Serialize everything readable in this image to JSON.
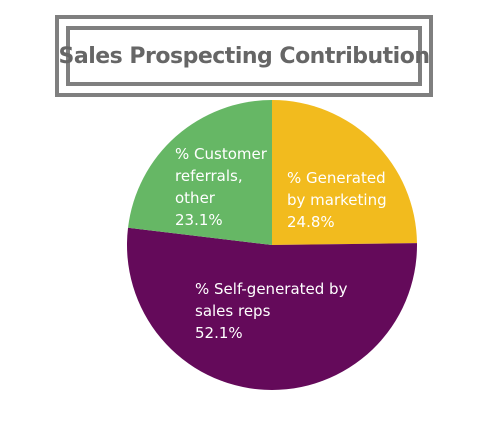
{
  "chart_data": {
    "type": "pie",
    "title": "Sales Prospecting Contribution",
    "slices": [
      {
        "label_lines": [
          "% Generated",
          "by marketing",
          "24.8%"
        ],
        "category": "% Generated by marketing",
        "value": 24.8,
        "color": "#f2bb1e"
      },
      {
        "label_lines": [
          "% Self-generated by",
          "sales reps",
          "52.1%"
        ],
        "category": "% Self-generated by sales reps",
        "value": 52.1,
        "color": "#640a5a"
      },
      {
        "label_lines": [
          "% Customer",
          "referrals,",
          "other",
          "23.1%"
        ],
        "category": "% Customer referrals, other",
        "value": 23.1,
        "color": "#66b765"
      }
    ],
    "start": "12 o'clock",
    "direction": "clockwise"
  }
}
